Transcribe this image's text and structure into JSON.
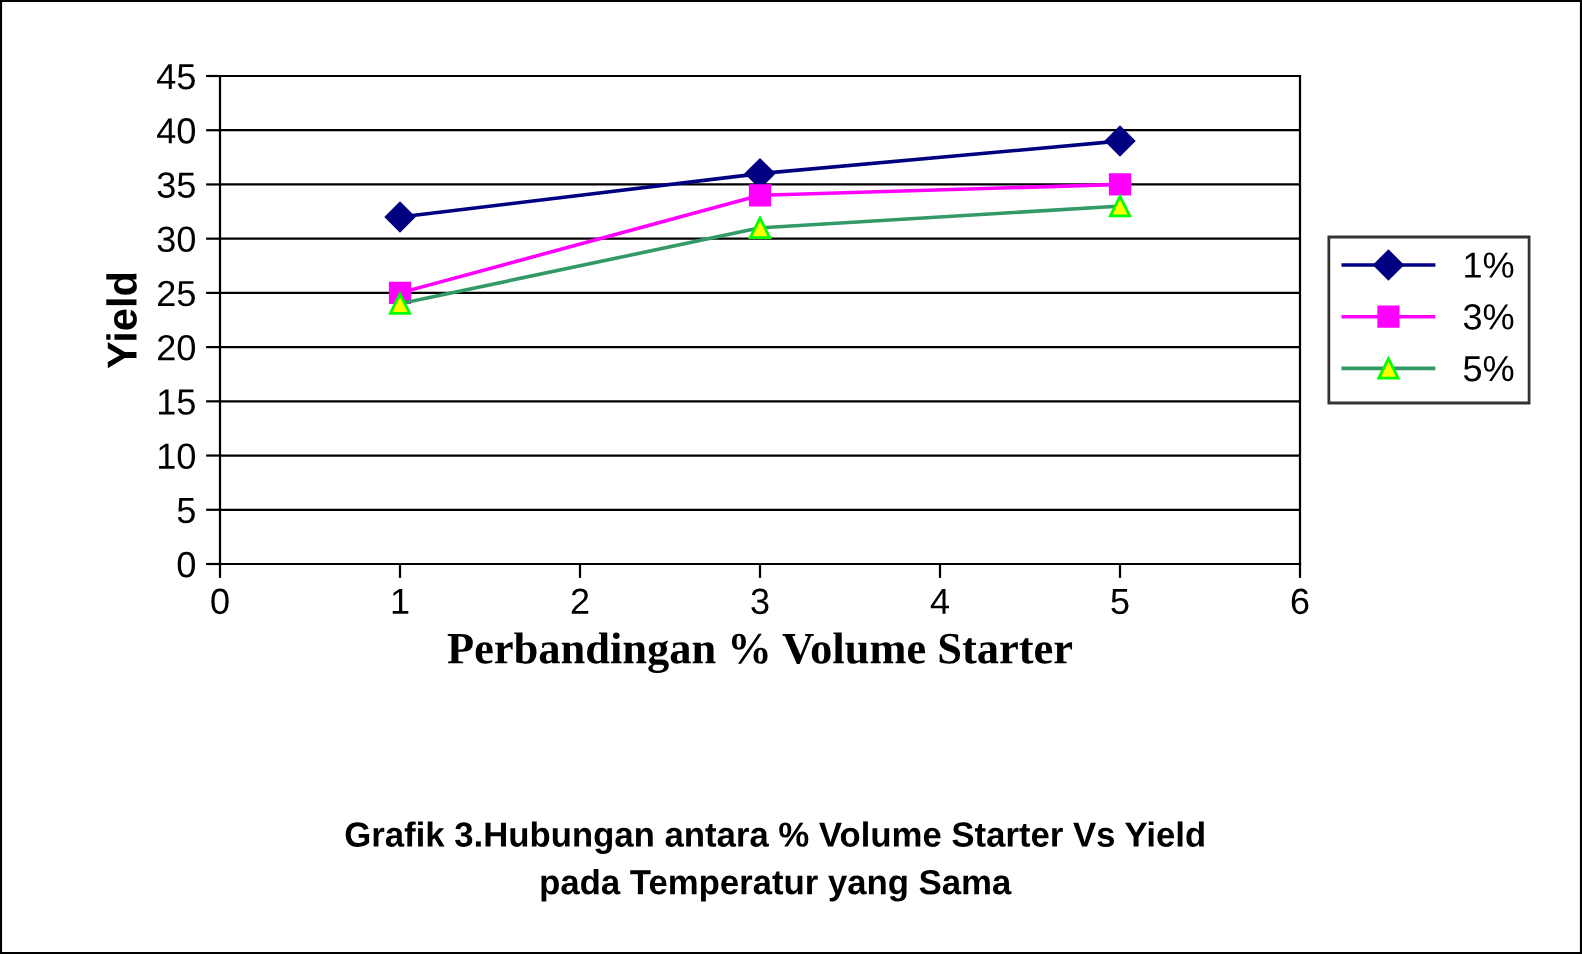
{
  "chart_data": {
    "type": "line",
    "title": "Grafik 3.Hubungan antara % Volume Starter Vs Yield\npada Temperatur yang Sama",
    "xlabel": "Perbandingan % Volume Starter",
    "ylabel": "Yield",
    "x": [
      1,
      3,
      5
    ],
    "series": [
      {
        "name": "1%",
        "color": "#000080",
        "values": [
          32,
          36,
          39
        ],
        "marker": "diamond"
      },
      {
        "name": "3%",
        "color": "#ff00ff",
        "values": [
          25,
          34,
          35
        ],
        "marker": "square"
      },
      {
        "name": "5%",
        "color": "#339966",
        "values": [
          24,
          31,
          33
        ],
        "marker": "triangle"
      }
    ],
    "xlim": [
      0,
      6
    ],
    "xticks": [
      0,
      1,
      2,
      3,
      4,
      5,
      6
    ],
    "ylim": [
      0,
      45
    ],
    "yticks": [
      0,
      5,
      10,
      15,
      20,
      25,
      30,
      35,
      40,
      45
    ],
    "grid": "y",
    "legend": "right",
    "line_style": "solid"
  }
}
